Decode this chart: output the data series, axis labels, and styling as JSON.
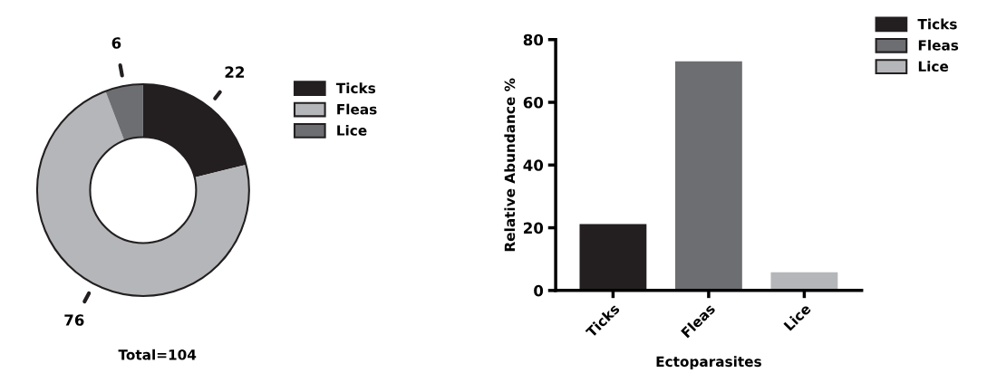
{
  "chart_data": [
    {
      "type": "donut",
      "categories": [
        "Ticks",
        "Fleas",
        "Lice"
      ],
      "values": [
        22,
        76,
        6
      ],
      "colors": [
        "#231f20",
        "#b5b6b9",
        "#6d6e71"
      ],
      "data_labels": true,
      "legend": "right",
      "annotations": [
        "Total=104"
      ]
    },
    {
      "type": "bar",
      "categories": [
        "Ticks",
        "Fleas",
        "Lice"
      ],
      "series": [
        {
          "name": "Ticks",
          "color": "#231f20",
          "values": [
            21.2,
            null,
            null
          ]
        },
        {
          "name": "Fleas",
          "color": "#6d6e71",
          "values": [
            null,
            73.1,
            null
          ]
        },
        {
          "name": "Lice",
          "color": "#b5b6b9",
          "values": [
            null,
            null,
            5.8
          ]
        }
      ],
      "xlabel": "Ectoparasites",
      "ylabel": "Relative Abundance %",
      "ylim": [
        0,
        80
      ],
      "yticks": [
        0,
        20,
        40,
        60,
        80
      ],
      "legend": "top right",
      "grid": false
    }
  ]
}
